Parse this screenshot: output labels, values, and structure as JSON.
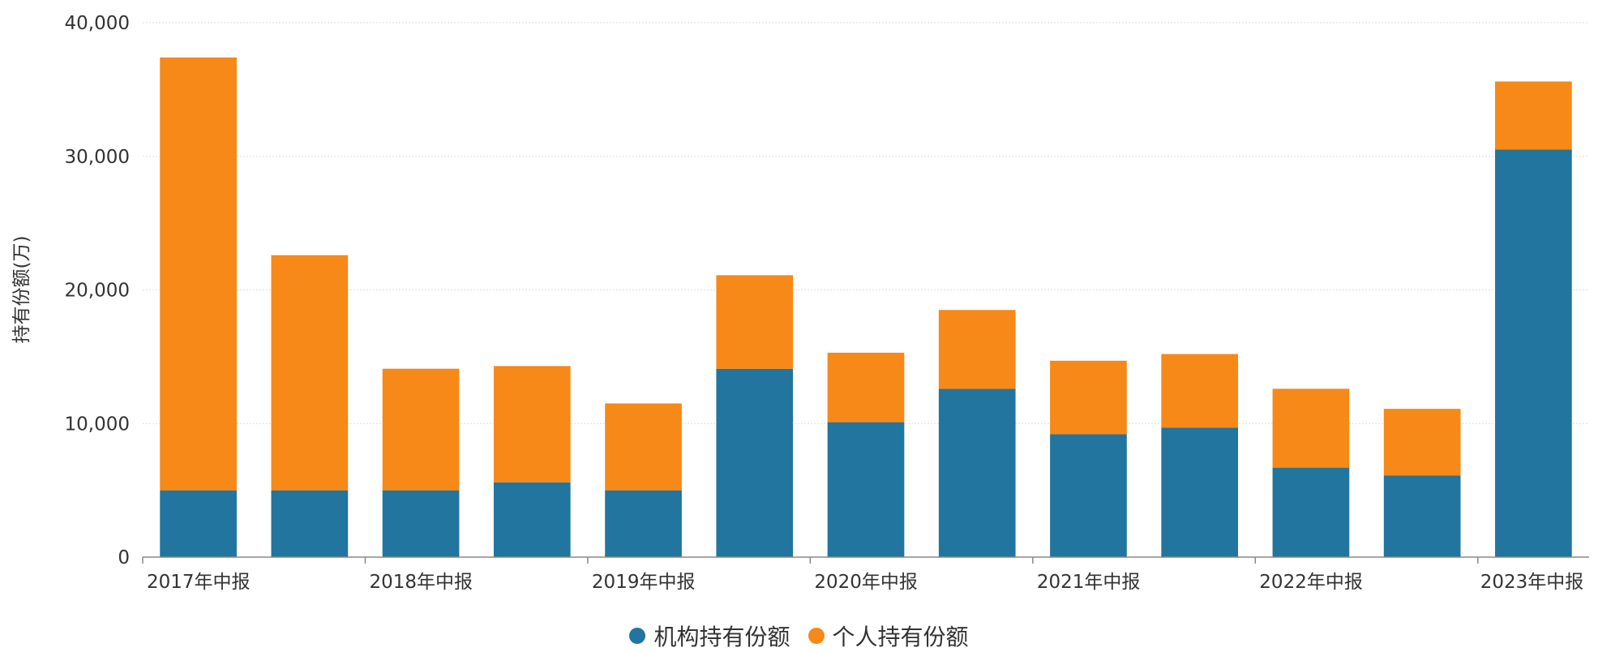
{
  "chart_data": {
    "type": "bar",
    "stacked": true,
    "categories": [
      "2017年中报",
      "",
      "2018年中报",
      "",
      "2019年中报",
      "",
      "2020年中报",
      "",
      "2021年中报",
      "",
      "2022年中报",
      "",
      "2023年中报"
    ],
    "series": [
      {
        "name": "机构持有份额",
        "color": "#21759f",
        "values": [
          5000,
          5000,
          5000,
          5600,
          5000,
          14100,
          10100,
          12600,
          9200,
          9700,
          6700,
          6100,
          30500
        ]
      },
      {
        "name": "个人持有份额",
        "color": "#f68917",
        "values": [
          32400,
          17600,
          9100,
          8700,
          6500,
          7000,
          5200,
          5900,
          5500,
          5500,
          5900,
          5000,
          5100
        ]
      }
    ],
    "ylabel": "持有份额(万)",
    "xlabel": "",
    "ylim": [
      0,
      40000
    ],
    "yticks": [
      "0",
      "10,000",
      "20,000",
      "30,000",
      "40,000"
    ],
    "grid": true,
    "legend_position": "bottom"
  }
}
